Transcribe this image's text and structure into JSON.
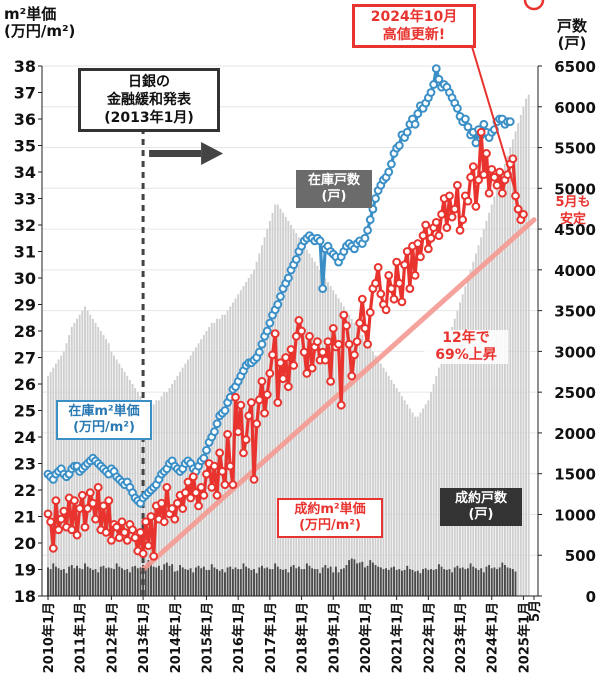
{
  "left_axis_title": "m²単価\n(万円/m²)",
  "right_axis_title": "戸数\n(戸)",
  "annotations": {
    "boj": "日銀の\n金融緩和発表\n(2013年1月)",
    "record": "2024年10月\n高値更新!",
    "stock_units": "在庫戸数\n(戸)",
    "stock_price": "在庫m²単価\n(万円/m²)",
    "deal_price": "成約m²単価\n(万円/m²)",
    "deal_units": "成約戸数\n(戸)",
    "growth": "12年で\n69%上昇",
    "may": "5月も\n安定"
  },
  "colors": {
    "stock_price": "#3b8fc7",
    "deal_price": "#e8332e",
    "trend": "#f59a92",
    "stock_bars": "#cfcfcf",
    "deal_bars": "#4a4a4a"
  },
  "chart_data": {
    "type": "line",
    "x_tick_labels": [
      "2010年1月",
      "2011年1月",
      "2012年1月",
      "2013年1月",
      "2014年1月",
      "2015年1月",
      "2016年1月",
      "2017年1月",
      "2018年1月",
      "2019年1月",
      "2020年1月",
      "2021年1月",
      "2022年1月",
      "2023年1月",
      "2024年1月",
      "2025年1月",
      "5月"
    ],
    "y_left": {
      "label": "m²単価(万円/m²)",
      "min": 18,
      "max": 38,
      "ticks": [
        18,
        19,
        20,
        21,
        22,
        23,
        24,
        25,
        26,
        27,
        28,
        29,
        30,
        31,
        32,
        33,
        34,
        35,
        36,
        37,
        38
      ]
    },
    "y_right": {
      "label": "戸数(戸)",
      "min": 0,
      "max": 6500,
      "ticks": [
        0,
        500,
        1000,
        1500,
        2000,
        2500,
        3000,
        3500,
        4000,
        4500,
        5000,
        5500,
        6000,
        6500
      ]
    },
    "series": [
      {
        "name": "在庫m²単価",
        "axis": "left",
        "monthly_start": "2010-01",
        "values": [
          22.6,
          22.5,
          22.4,
          22.6,
          22.7,
          22.8,
          22.6,
          22.5,
          22.6,
          22.8,
          22.9,
          22.9,
          22.7,
          22.8,
          22.9,
          23.0,
          23.1,
          23.2,
          23.1,
          23.0,
          22.9,
          22.8,
          22.7,
          22.6,
          22.8,
          22.7,
          22.5,
          22.4,
          22.3,
          22.2,
          22.3,
          22.1,
          21.9,
          21.7,
          21.6,
          21.5,
          21.7,
          21.8,
          21.9,
          22.0,
          22.1,
          22.2,
          22.4,
          22.6,
          22.7,
          22.8,
          23.0,
          23.1,
          22.9,
          22.8,
          22.7,
          22.8,
          23.0,
          23.1,
          23.0,
          22.8,
          22.7,
          22.9,
          23.1,
          23.2,
          23.5,
          23.8,
          24.0,
          24.2,
          24.5,
          24.8,
          24.9,
          25.0,
          25.3,
          25.5,
          25.8,
          25.9,
          26.1,
          26.3,
          26.5,
          26.7,
          26.8,
          26.8,
          26.9,
          27.0,
          27.2,
          27.5,
          27.8,
          28.0,
          28.3,
          28.6,
          28.8,
          29.0,
          29.3,
          29.6,
          29.8,
          30.0,
          30.3,
          30.5,
          30.7,
          31.0,
          31.2,
          31.4,
          31.5,
          31.6,
          31.5,
          31.4,
          31.5,
          31.4,
          29.6,
          31.1,
          31.2,
          31.0,
          30.9,
          30.8,
          30.6,
          30.8,
          31.0,
          31.2,
          31.3,
          31.2,
          31.1,
          31.3,
          31.4,
          31.3,
          31.5,
          31.8,
          32.2,
          32.6,
          33.0,
          33.3,
          33.5,
          33.7,
          33.8,
          34.0,
          34.3,
          34.7,
          34.9,
          35.0,
          35.4,
          35.3,
          35.5,
          35.8,
          36.0,
          35.8,
          36.2,
          36.5,
          36.4,
          36.6,
          36.8,
          37.0,
          37.3,
          37.9,
          37.5,
          37.2,
          37.3,
          37.2,
          37.0,
          36.8,
          36.6,
          36.4,
          36.1,
          35.9,
          36.0,
          35.7,
          35.4,
          35.5,
          35.1,
          35.6,
          35.4,
          35.8,
          35.5,
          35.3,
          35.5,
          35.6,
          35.9,
          36.0,
          36.0,
          35.8,
          35.9,
          35.9
        ]
      },
      {
        "name": "成約m²単価",
        "axis": "left",
        "monthly_start": "2010-01",
        "values": [
          21.1,
          20.8,
          19.8,
          21.6,
          20.5,
          20.9,
          21.2,
          20.6,
          21.7,
          20.5,
          21.6,
          20.3,
          21.3,
          21.8,
          20.6,
          21.3,
          21.9,
          21.5,
          20.9,
          22.1,
          20.5,
          21.4,
          20.4,
          21.6,
          20.1,
          20.7,
          20.6,
          20.2,
          20.8,
          20.4,
          20.1,
          20.7,
          20.5,
          20.2,
          19.7,
          20.4,
          19.6,
          20.8,
          19.9,
          21.0,
          19.5,
          21.4,
          20.9,
          21.5,
          20.8,
          22.1,
          21.1,
          21.3,
          20.9,
          21.5,
          21.8,
          21.3,
          21.9,
          22.3,
          21.7,
          22.5,
          21.9,
          21.4,
          22.1,
          21.8,
          22.6,
          23.0,
          22.1,
          22.9,
          21.8,
          23.4,
          22.7,
          22.2,
          24.1,
          22.9,
          22.2,
          25.5,
          24.2,
          25.2,
          23.4,
          23.9,
          24.8,
          25.3,
          22.4,
          24.5,
          25.4,
          26.1,
          24.9,
          25.6,
          26.4,
          27.1,
          27.9,
          25.3,
          26.8,
          26.2,
          27.0,
          25.9,
          27.3,
          26.7,
          27.8,
          28.4,
          28.0,
          27.2,
          26.4,
          27.8,
          26.6,
          27.4,
          27.6,
          26.9,
          27.2,
          26.9,
          27.6,
          26.1,
          28.1,
          27.4,
          27.5,
          25.2,
          28.6,
          28.2,
          27.5,
          26.3,
          27.1,
          27.6,
          28.3,
          29.2,
          28.1,
          27.5,
          28.7,
          29.6,
          29.8,
          30.4,
          29.4,
          29.0,
          28.8,
          30.1,
          29.6,
          29.2,
          30.6,
          29.8,
          29.1,
          30.5,
          31.0,
          29.6,
          31.2,
          30.1,
          31.3,
          30.8,
          31.6,
          32.0,
          31.1,
          31.5,
          31.9,
          32.1,
          31.6,
          32.4,
          33.0,
          31.9,
          33.1,
          32.3,
          32.6,
          33.5,
          31.8,
          32.2,
          33.1,
          32.9,
          33.8,
          34.2,
          32.7,
          33.7,
          35.5,
          33.9,
          34.7,
          33.2,
          34.1,
          33.8,
          33.5,
          34.0,
          33.2,
          33.7,
          33.9,
          34.3,
          34.5,
          33.1,
          32.6,
          32.2,
          32.4
        ]
      },
      {
        "name": "在庫戸数",
        "axis": "right",
        "type": "bar",
        "monthly_start": "2010-01",
        "values": [
          2700,
          2750,
          2800,
          2850,
          2900,
          2950,
          3000,
          3100,
          3200,
          3300,
          3350,
          3400,
          3450,
          3500,
          3550,
          3500,
          3450,
          3400,
          3350,
          3300,
          3250,
          3200,
          3150,
          3100,
          3000,
          2950,
          2900,
          2850,
          2800,
          2750,
          2700,
          2650,
          2600,
          2550,
          2500,
          2450,
          2400,
          2350,
          2300,
          2300,
          2350,
          2400,
          2400,
          2450,
          2500,
          2500,
          2550,
          2600,
          2650,
          2700,
          2750,
          2800,
          2850,
          2900,
          2950,
          3000,
          3050,
          3100,
          3150,
          3200,
          3250,
          3300,
          3350,
          3350,
          3400,
          3400,
          3450,
          3450,
          3500,
          3550,
          3600,
          3650,
          3700,
          3750,
          3800,
          3850,
          3900,
          3950,
          4000,
          4100,
          4200,
          4300,
          4400,
          4500,
          4600,
          4700,
          4800,
          4800,
          4750,
          4700,
          4650,
          4600,
          4550,
          4500,
          4450,
          4400,
          4350,
          4300,
          4250,
          4200,
          4150,
          4100,
          4050,
          4000,
          3950,
          3900,
          3850,
          3800,
          3750,
          3700,
          3650,
          3600,
          3550,
          3500,
          3450,
          3400,
          3350,
          3300,
          3250,
          3200,
          3150,
          3100,
          3050,
          3000,
          2950,
          2900,
          2850,
          2800,
          2750,
          2700,
          2650,
          2600,
          2550,
          2500,
          2450,
          2400,
          2350,
          2300,
          2250,
          2200,
          2200,
          2250,
          2300,
          2350,
          2400,
          2500,
          2600,
          2700,
          2800,
          2900,
          3000,
          3100,
          3200,
          3300,
          3400,
          3500,
          3600,
          3700,
          3800,
          3900,
          4000,
          4100,
          4200,
          4300,
          4400,
          4500,
          4600,
          4700,
          4800,
          4900,
          5000,
          5100,
          5200,
          5300,
          5400,
          5500,
          5600,
          5700,
          5800,
          5900,
          6000,
          6100,
          6150
        ]
      },
      {
        "name": "成約戸数",
        "axis": "right",
        "type": "bar",
        "monthly_start": "2010-01",
        "values": [
          350,
          330,
          400,
          360,
          340,
          320,
          330,
          280,
          360,
          380,
          340,
          370,
          340,
          330,
          400,
          360,
          340,
          320,
          330,
          290,
          360,
          370,
          340,
          350,
          340,
          330,
          400,
          360,
          340,
          320,
          330,
          290,
          360,
          370,
          340,
          350,
          380,
          370,
          440,
          400,
          360,
          350,
          370,
          320,
          390,
          410,
          370,
          390,
          300,
          310,
          380,
          350,
          330,
          320,
          340,
          290,
          350,
          370,
          340,
          360,
          320,
          320,
          390,
          350,
          330,
          310,
          330,
          290,
          350,
          360,
          330,
          350,
          330,
          330,
          400,
          360,
          340,
          320,
          330,
          280,
          350,
          370,
          340,
          350,
          330,
          330,
          400,
          360,
          330,
          320,
          330,
          290,
          360,
          380,
          340,
          360,
          330,
          330,
          400,
          370,
          340,
          330,
          330,
          280,
          350,
          380,
          340,
          360,
          290,
          360,
          290,
          330,
          340,
          380,
          440,
          460,
          450,
          400,
          410,
          420,
          350,
          370,
          440,
          410,
          380,
          360,
          350,
          330,
          340,
          320,
          350,
          360,
          320,
          330,
          310,
          320,
          370,
          330,
          320,
          300,
          310,
          280,
          330,
          340,
          320,
          330,
          320,
          330,
          390,
          360,
          330,
          320,
          330,
          290,
          350,
          370,
          340,
          350,
          330,
          340,
          400,
          360,
          340,
          320,
          340,
          290,
          360,
          380,
          340,
          350,
          330,
          350,
          410,
          380,
          350,
          340,
          330,
          300
        ]
      }
    ],
    "trend_line": {
      "from": {
        "x": "2013-01",
        "y": 19.0
      },
      "to": {
        "x": "2025-05",
        "y": 32.2
      }
    }
  }
}
